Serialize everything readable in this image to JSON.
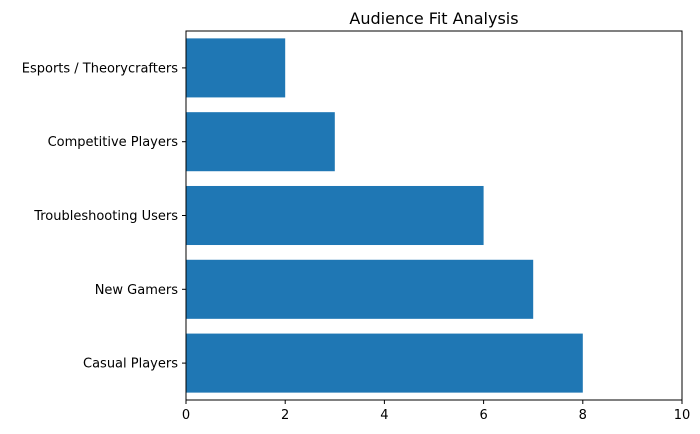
{
  "chart_data": {
    "type": "bar",
    "orientation": "horizontal",
    "title": "Audience Fit Analysis",
    "xlabel": "",
    "ylabel": "",
    "categories": [
      "Casual Players",
      "New Gamers",
      "Troubleshooting Users",
      "Competitive Players",
      "Esports / Theorycrafters"
    ],
    "values": [
      8,
      7,
      6,
      3,
      2
    ],
    "xlim": [
      0,
      10
    ],
    "xticks": [
      0,
      2,
      4,
      6,
      8,
      10
    ],
    "bar_color": "#1f77b4",
    "grid": false
  }
}
